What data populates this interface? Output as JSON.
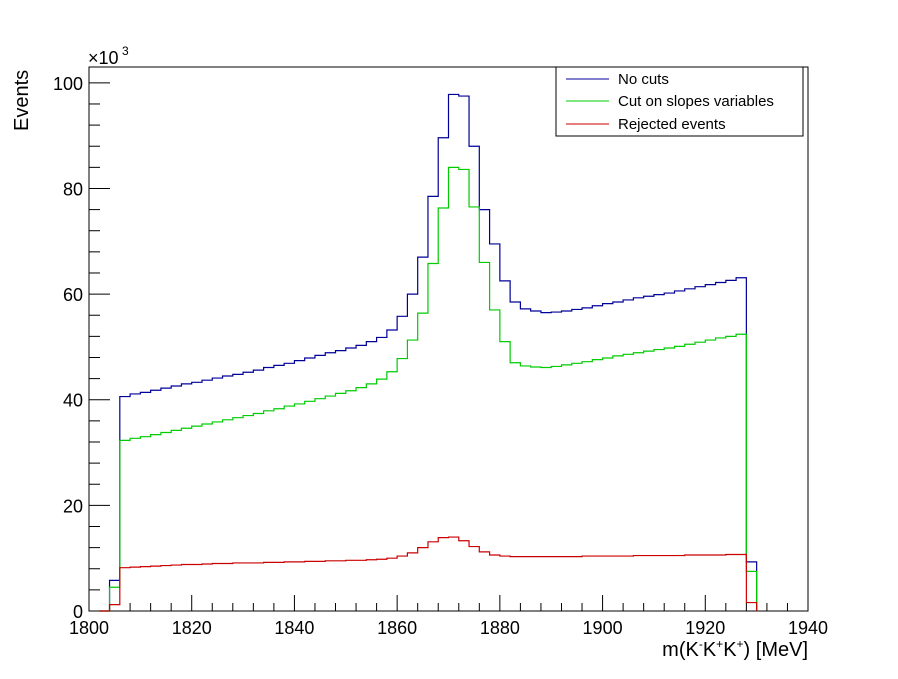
{
  "chart_data": {
    "type": "line",
    "style": "step histogram",
    "xlabel_parts": [
      "m(K",
      "-",
      "K",
      "+",
      "K",
      "+",
      ") [MeV]"
    ],
    "ylabel": "Events",
    "y_multiplier": "×10",
    "y_multiplier_exp": "3",
    "xlim": [
      1800,
      1940
    ],
    "ylim": [
      0,
      103
    ],
    "x_ticks": [
      1800,
      1820,
      1840,
      1860,
      1880,
      1900,
      1920,
      1940
    ],
    "y_ticks": [
      0,
      20,
      40,
      60,
      80,
      100
    ],
    "legend_position": "top-right",
    "bin_width": 2,
    "x_start": 1802,
    "series": [
      {
        "name": "No cuts",
        "color": "#000099",
        "values": [
          0,
          5.8,
          40.6,
          41.1,
          41.4,
          41.8,
          42.2,
          42.6,
          43,
          43.3,
          43.7,
          44.1,
          44.5,
          44.8,
          45.2,
          45.6,
          46.1,
          46.5,
          46.9,
          47.4,
          47.9,
          48.4,
          48.9,
          49.3,
          49.8,
          50.3,
          51,
          51.8,
          53.2,
          55.8,
          60,
          67,
          78.5,
          89.6,
          97.8,
          97.5,
          88,
          76,
          69.5,
          62.5,
          58.5,
          57.2,
          56.8,
          56.5,
          56.6,
          56.8,
          57.1,
          57.4,
          57.8,
          58.2,
          58.5,
          58.9,
          59.3,
          59.6,
          59.9,
          60.2,
          60.6,
          61,
          61.4,
          61.8,
          62.2,
          62.6,
          63.1,
          9.3
        ]
      },
      {
        "name": "Cut on slopes variables",
        "color": "#00cc00",
        "values": [
          0,
          4.5,
          32.3,
          32.7,
          33,
          33.4,
          33.8,
          34.2,
          34.6,
          35,
          35.4,
          35.8,
          36.2,
          36.6,
          37,
          37.4,
          37.9,
          38.3,
          38.8,
          39.2,
          39.7,
          40.2,
          40.7,
          41.2,
          41.7,
          42.3,
          43,
          43.9,
          45.3,
          47.8,
          51.3,
          56.4,
          65.8,
          76.3,
          84,
          83.6,
          76.5,
          66,
          57,
          51,
          47,
          46.4,
          46.2,
          46.1,
          46.3,
          46.6,
          46.9,
          47.2,
          47.6,
          47.9,
          48.3,
          48.6,
          48.9,
          49.2,
          49.5,
          49.8,
          50.1,
          50.5,
          50.9,
          51.3,
          51.7,
          52,
          52.4,
          7.5
        ]
      },
      {
        "name": "Rejected events",
        "color": "#cc0000",
        "values": [
          0,
          1.2,
          8.2,
          8.3,
          8.4,
          8.5,
          8.6,
          8.7,
          8.8,
          8.8,
          8.9,
          9,
          9,
          9.1,
          9.1,
          9.1,
          9.2,
          9.2,
          9.3,
          9.3,
          9.4,
          9.4,
          9.5,
          9.5,
          9.6,
          9.6,
          9.7,
          9.8,
          10,
          10.4,
          11,
          12,
          13.1,
          13.9,
          14,
          13.3,
          12.2,
          11.2,
          10.6,
          10.4,
          10.3,
          10.3,
          10.3,
          10.3,
          10.3,
          10.3,
          10.3,
          10.4,
          10.4,
          10.4,
          10.4,
          10.4,
          10.5,
          10.5,
          10.5,
          10.5,
          10.5,
          10.6,
          10.6,
          10.6,
          10.6,
          10.7,
          10.7,
          1.6
        ]
      }
    ]
  }
}
